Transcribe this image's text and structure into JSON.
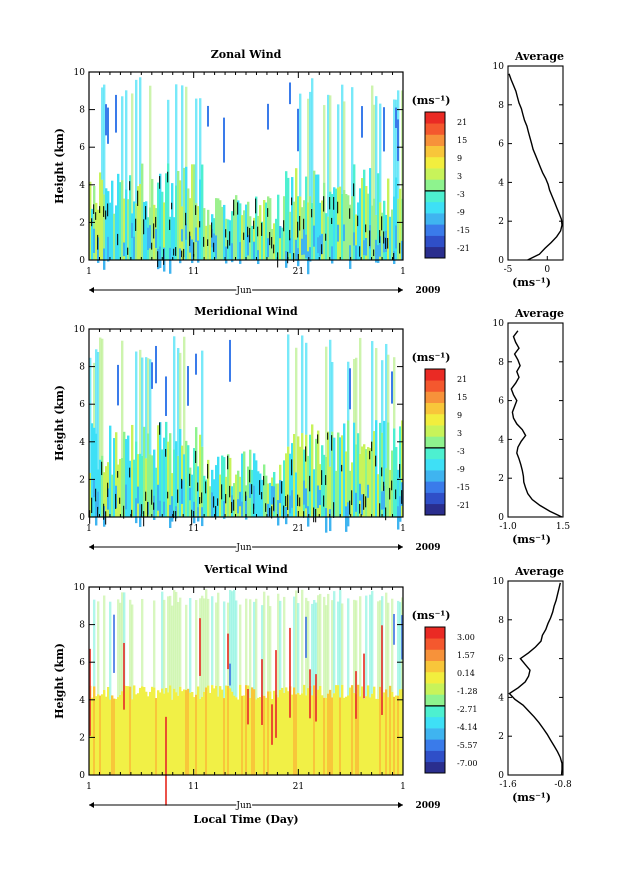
{
  "chart_data": [
    {
      "type": "heatmap",
      "title": "Zonal Wind",
      "ylabel": "Height (km)",
      "ylim": [
        0,
        10
      ],
      "yticks": [
        "0",
        "2",
        "4",
        "6",
        "8",
        "10"
      ],
      "xticks": [
        "1",
        "11",
        "21",
        "1"
      ],
      "month_label": "Jun",
      "year_label": "2009",
      "colorbar": {
        "unit": "(ms⁻¹)",
        "ticks": [
          "21",
          "15",
          "9",
          "3",
          "-3",
          "-9",
          "-15",
          "-21"
        ],
        "colors": [
          "#2a2e8e",
          "#2f4fc8",
          "#3a7bea",
          "#3fb4f0",
          "#3ee0f6",
          "#4df0d0",
          "#8ef38e",
          "#c8f35a",
          "#f2ee3e",
          "#f8c63a",
          "#f7923a",
          "#f4582e",
          "#ea2a24"
        ]
      },
      "average": {
        "title": "Average",
        "xlabel": "(ms⁻¹)",
        "xlim": [
          -5,
          2
        ],
        "xticks": [
          "-5",
          "0"
        ],
        "ylim": [
          0,
          10
        ],
        "yticks": [
          "0",
          "2",
          "4",
          "6",
          "8",
          "10"
        ],
        "y": [
          0.0,
          0.3,
          0.6,
          0.9,
          1.2,
          1.5,
          1.8,
          2.1,
          2.4,
          2.7,
          3.0,
          3.3,
          3.6,
          3.9,
          4.2,
          4.5,
          4.8,
          5.1,
          5.4,
          5.7,
          6.0,
          6.3,
          6.6,
          6.9,
          7.2,
          7.5,
          7.8,
          8.1,
          8.4,
          8.7,
          9.0,
          9.3,
          9.6
        ],
        "x": [
          -2.5,
          -1.0,
          -0.3,
          0.5,
          1.2,
          1.7,
          1.9,
          1.8,
          1.5,
          1.2,
          0.9,
          0.6,
          0.3,
          0.1,
          -0.2,
          -0.6,
          -0.9,
          -1.2,
          -1.5,
          -1.8,
          -2.0,
          -2.2,
          -2.4,
          -2.6,
          -2.9,
          -3.1,
          -3.3,
          -3.6,
          -3.8,
          -4.0,
          -4.3,
          -4.6,
          -4.9
        ]
      }
    },
    {
      "type": "heatmap",
      "title": "Meridional Wind",
      "ylabel": "Height (km)",
      "ylim": [
        0,
        10
      ],
      "yticks": [
        "0",
        "2",
        "4",
        "6",
        "8",
        "10"
      ],
      "xticks": [
        "1",
        "11",
        "21",
        "1"
      ],
      "month_label": "Jun",
      "year_label": "2009",
      "colorbar": {
        "unit": "(ms⁻¹)",
        "ticks": [
          "21",
          "15",
          "9",
          "3",
          "-3",
          "-9",
          "-15",
          "-21"
        ],
        "colors": [
          "#2a2e8e",
          "#2f4fc8",
          "#3a7bea",
          "#3fb4f0",
          "#3ee0f6",
          "#4df0d0",
          "#8ef38e",
          "#c8f35a",
          "#f2ee3e",
          "#f8c63a",
          "#f7923a",
          "#f4582e",
          "#ea2a24"
        ]
      },
      "average": {
        "title": "Average",
        "xlabel": "(ms⁻¹)",
        "xlim": [
          -1.0,
          1.5
        ],
        "xticks": [
          "-1.0",
          "1.5"
        ],
        "ylim": [
          0,
          10
        ],
        "yticks": [
          "0",
          "2",
          "4",
          "6",
          "8",
          "10"
        ],
        "y": [
          0.0,
          0.3,
          0.6,
          0.9,
          1.2,
          1.5,
          1.8,
          2.1,
          2.4,
          2.7,
          3.0,
          3.3,
          3.6,
          3.9,
          4.2,
          4.5,
          4.8,
          5.1,
          5.4,
          5.7,
          6.0,
          6.3,
          6.6,
          6.9,
          7.2,
          7.5,
          7.8,
          8.1,
          8.4,
          8.7,
          9.0,
          9.3,
          9.6
        ],
        "x": [
          1.45,
          0.9,
          0.45,
          0.1,
          -0.1,
          -0.2,
          -0.28,
          -0.3,
          -0.35,
          -0.42,
          -0.5,
          -0.6,
          -0.55,
          -0.4,
          -0.2,
          -0.35,
          -0.6,
          -0.75,
          -0.8,
          -0.7,
          -0.6,
          -0.75,
          -0.85,
          -0.65,
          -0.5,
          -0.6,
          -0.45,
          -0.55,
          -0.7,
          -0.5,
          -0.65,
          -0.75,
          -0.55
        ]
      }
    },
    {
      "type": "heatmap",
      "title": "Vertical Wind",
      "ylabel": "Height (km)",
      "xlabel": "Local Time (Day)",
      "ylim": [
        0,
        10
      ],
      "yticks": [
        "0",
        "2",
        "4",
        "6",
        "8",
        "10"
      ],
      "xticks": [
        "1",
        "11",
        "21",
        "1"
      ],
      "month_label": "Jun",
      "year_label": "2009",
      "colorbar": {
        "unit": "(ms⁻¹)",
        "ticks": [
          "3.00",
          "1.57",
          "0.14",
          "-1.28",
          "-2.71",
          "-4.14",
          "-5.57",
          "-7.00"
        ],
        "colors": [
          "#2a2e8e",
          "#2f4fc8",
          "#3a7bea",
          "#3fb4f0",
          "#3ee0f6",
          "#4df0d0",
          "#8ef38e",
          "#c8f35a",
          "#f2ee3e",
          "#f8c63a",
          "#f7923a",
          "#f4582e",
          "#ea2a24"
        ]
      },
      "average": {
        "title": "Average",
        "xlabel": "(ms⁻¹)",
        "xlim": [
          -1.6,
          -0.8
        ],
        "xticks": [
          "-1.6",
          "-0.8"
        ],
        "ylim": [
          0,
          10
        ],
        "yticks": [
          "0",
          "2",
          "4",
          "6",
          "8",
          "10"
        ],
        "y": [
          0.0,
          0.3,
          0.6,
          0.9,
          1.2,
          1.5,
          1.8,
          2.1,
          2.4,
          2.7,
          3.0,
          3.3,
          3.6,
          3.9,
          4.2,
          4.5,
          4.8,
          5.1,
          5.4,
          5.7,
          6.0,
          6.3,
          6.6,
          6.9,
          7.2,
          7.5,
          7.8,
          8.1,
          8.4,
          8.7,
          9.0,
          9.3,
          9.6,
          9.9
        ],
        "x": [
          -0.82,
          -0.8,
          -0.81,
          -0.84,
          -0.88,
          -0.93,
          -0.98,
          -1.03,
          -1.09,
          -1.15,
          -1.22,
          -1.3,
          -1.38,
          -1.5,
          -1.58,
          -1.45,
          -1.35,
          -1.3,
          -1.28,
          -1.35,
          -1.42,
          -1.3,
          -1.2,
          -1.12,
          -1.1,
          -1.05,
          -1.02,
          -0.98,
          -0.95,
          -0.93,
          -0.9,
          -0.88,
          -0.86,
          -0.84
        ]
      }
    }
  ]
}
